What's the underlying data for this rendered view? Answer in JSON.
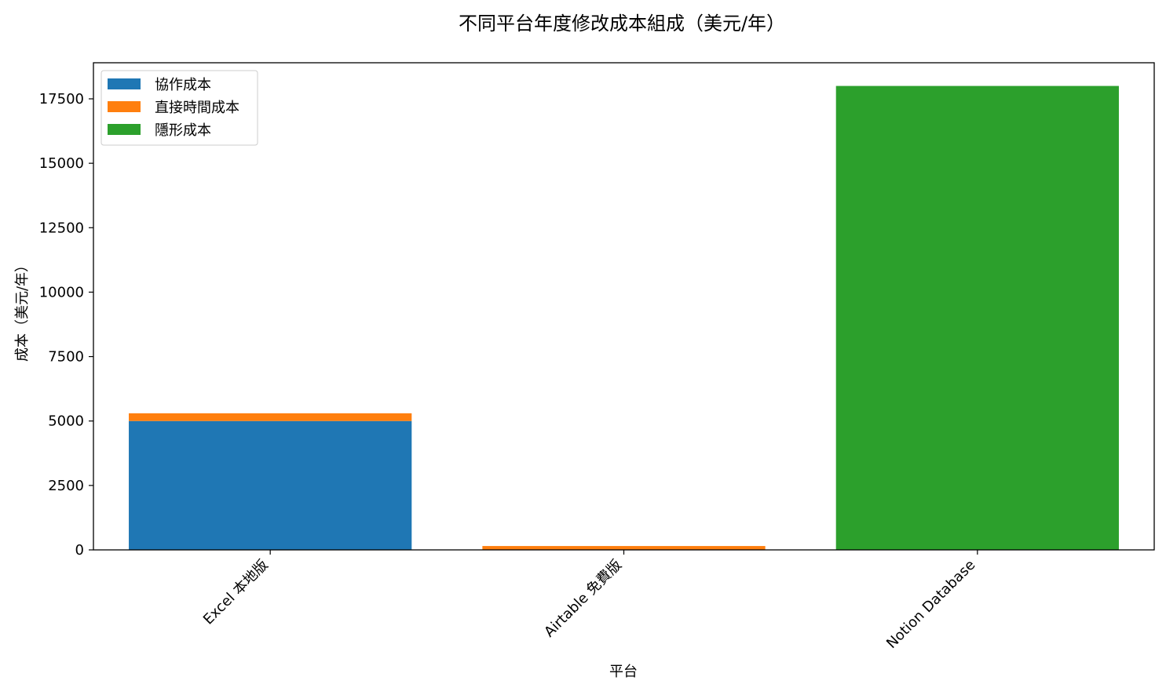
{
  "chart_data": {
    "type": "bar",
    "stacked": true,
    "title": "不同平台年度修改成本組成（美元/年）",
    "xlabel": "平台",
    "ylabel": "成本（美元/年）",
    "categories": [
      "Excel 本地版",
      "Airtable 免費版",
      "Notion Database"
    ],
    "series": [
      {
        "name": "協作成本",
        "color": "#1f77b4",
        "values": [
          5000,
          0,
          0
        ]
      },
      {
        "name": "直接時間成本",
        "color": "#ff7f0e",
        "values": [
          300,
          150,
          0
        ]
      },
      {
        "name": "隱形成本",
        "color": "#2ca02c",
        "values": [
          0,
          0,
          18000
        ]
      }
    ],
    "ylim": [
      0,
      18900
    ],
    "yticks": [
      0,
      2500,
      5000,
      7500,
      10000,
      12500,
      15000,
      17500
    ],
    "grid": false,
    "legend_position": "top-left"
  }
}
